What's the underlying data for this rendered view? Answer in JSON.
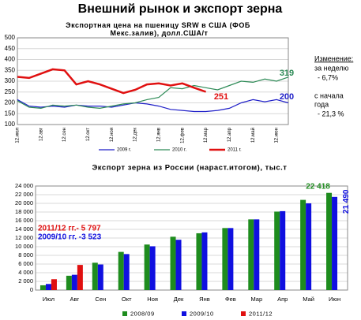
{
  "header": {
    "title": "Внешний рынок и экспорт зерна"
  },
  "chart_data": [
    {
      "type": "line",
      "title": "Экспортная цена на пшеницу SRW в США (ФОБ Мекс.залив), долл.США/т",
      "categories": [
        "12.июл",
        null,
        "12.авг",
        null,
        "12.сен",
        null,
        "12.окт",
        null,
        "12.ноя",
        null,
        "12.дек",
        null,
        "12.янв",
        null,
        "12.фев",
        null,
        "12.мар",
        null,
        "12.апр",
        null,
        "12.май",
        null,
        "12.июн",
        null
      ],
      "series": [
        {
          "name": "2009 г.",
          "color": "#1f1fc8",
          "values": [
            215,
            185,
            180,
            185,
            180,
            190,
            185,
            185,
            180,
            190,
            200,
            195,
            185,
            170,
            165,
            160,
            160,
            165,
            175,
            200,
            215,
            205,
            215,
            200
          ]
        },
        {
          "name": "2010 г.",
          "color": "#2e8b57",
          "values": [
            210,
            180,
            175,
            190,
            185,
            190,
            180,
            175,
            185,
            195,
            200,
            215,
            225,
            270,
            265,
            280,
            270,
            260,
            280,
            300,
            295,
            310,
            300,
            319
          ]
        },
        {
          "name": "2011 г.",
          "color": "#e01010",
          "values": [
            320,
            315,
            335,
            355,
            350,
            285,
            300,
            285,
            265,
            245,
            260,
            285,
            290,
            280,
            290,
            270,
            251,
            null,
            null,
            null,
            null,
            null,
            null,
            null
          ]
        }
      ],
      "annotations": [
        "319",
        "200",
        "251"
      ],
      "note": [
        "Изменение:",
        "за неделю",
        "- 6,7%",
        "с начала",
        "года",
        "- 21,3 %"
      ],
      "ylim": [
        100,
        500
      ],
      "yticks": [
        100,
        150,
        200,
        250,
        300,
        350,
        400,
        450,
        500
      ],
      "grid": true
    },
    {
      "type": "bar",
      "title": "Экспорт зерна из России (нараст.итогом), тыс.т",
      "categories": [
        "Июл",
        "Авг",
        "Сен",
        "Окт",
        "Ноя",
        "Дек",
        "Янв",
        "Фев",
        "Мар",
        "Апр",
        "Май",
        "Июн"
      ],
      "series": [
        {
          "name": "2008/09",
          "color": "#1e8c1e",
          "values": [
            1100,
            3300,
            6300,
            8800,
            10500,
            12300,
            13100,
            14300,
            16300,
            18100,
            20800,
            22418
          ],
          "value_labels": [
            null,
            null,
            null,
            null,
            null,
            null,
            null,
            null,
            null,
            null,
            null,
            "22 418"
          ]
        },
        {
          "name": "2009/10",
          "color": "#1010e0",
          "values": [
            1400,
            3523,
            5900,
            8300,
            10100,
            11600,
            13300,
            14300,
            16300,
            18200,
            20000,
            21490
          ],
          "value_labels": [
            null,
            null,
            null,
            null,
            null,
            null,
            null,
            null,
            null,
            null,
            null,
            "21 490"
          ]
        },
        {
          "name": "2011/12",
          "color": "#e01010",
          "values": [
            2500,
            5797,
            null,
            null,
            null,
            null,
            null,
            null,
            null,
            null,
            null,
            null
          ]
        }
      ],
      "annotations": [
        "2011/12 гг.- 5 797",
        "2009/10 гг. -3 523"
      ],
      "ylim": [
        0,
        24000
      ],
      "yticks": [
        0,
        {
          "value": 2000,
          "label": "2 000"
        },
        {
          "value": 4000,
          "label": "4 000"
        },
        {
          "value": 6000,
          "label": "6 000"
        },
        {
          "value": 8000,
          "label": "8 000"
        },
        {
          "value": 10000,
          "label": "10 000"
        },
        {
          "value": 12000,
          "label": "12 000"
        },
        {
          "value": 14000,
          "label": "14 000"
        },
        {
          "value": 16000,
          "label": "16 000"
        },
        {
          "value": 18000,
          "label": "18 000"
        },
        {
          "value": 20000,
          "label": "20 000"
        },
        {
          "value": 22000,
          "label": "22 000"
        },
        {
          "value": 24000,
          "label": "24 000"
        }
      ],
      "grid": true
    }
  ]
}
